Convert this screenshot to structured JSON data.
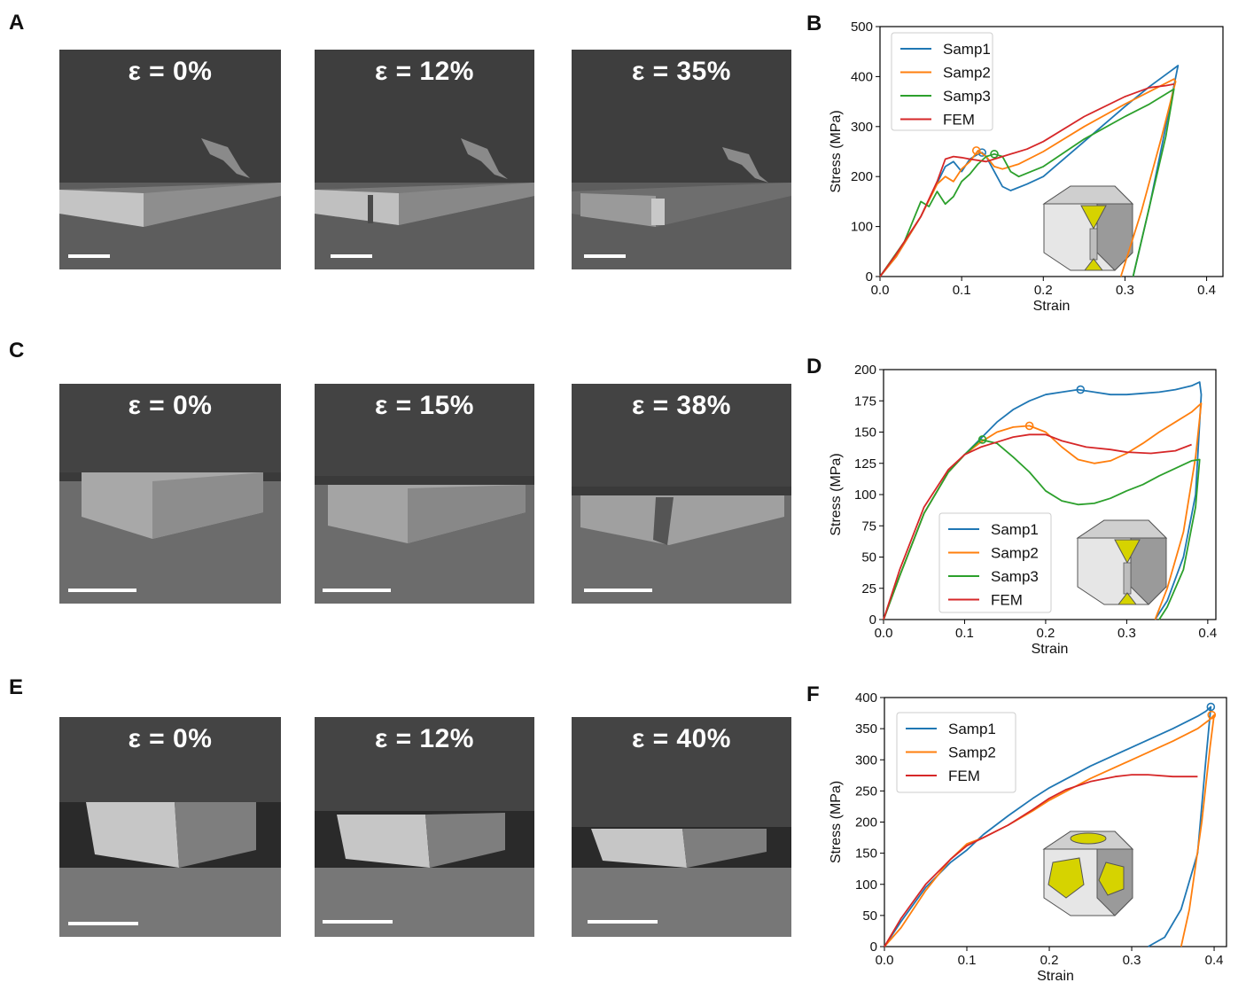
{
  "panels": {
    "A": {
      "letter": "A",
      "labels": [
        "ε = 0%",
        "ε = 12%",
        "ε = 35%"
      ]
    },
    "C": {
      "letter": "C",
      "labels": [
        "ε = 0%",
        "ε = 15%",
        "ε = 38%"
      ]
    },
    "E": {
      "letter": "E",
      "labels": [
        "ε = 0%",
        "ε = 12%",
        "ε = 40%"
      ]
    }
  },
  "colors": {
    "Samp1": "#1f77b4",
    "Samp2": "#ff7f0e",
    "Samp3": "#2ca02c",
    "FEM": "#d62728",
    "inset_yellow": "#d6d300",
    "inset_gray": "#9a9a9a"
  },
  "chart_data": [
    {
      "letter": "B",
      "type": "line",
      "xlabel": "Strain",
      "ylabel": "Stress (MPa)",
      "xlim": [
        0,
        0.42
      ],
      "ylim": [
        0,
        500
      ],
      "xticks": [
        0.0,
        0.1,
        0.2,
        0.3,
        0.4
      ],
      "xtick_labels": [
        "0.0",
        "0.1",
        "0.2",
        "0.3",
        "0.4"
      ],
      "yticks": [
        0,
        100,
        200,
        300,
        400,
        500
      ],
      "ytick_labels": [
        "0",
        "100",
        "200",
        "300",
        "400",
        "500"
      ],
      "legend": [
        "Samp1",
        "Samp2",
        "Samp3",
        "FEM"
      ],
      "inset": "truncated-octahedron-thick",
      "series": [
        {
          "name": "Samp1",
          "x": [
            0,
            0.02,
            0.05,
            0.08,
            0.09,
            0.1,
            0.11,
            0.12,
            0.125,
            0.13,
            0.14,
            0.15,
            0.16,
            0.18,
            0.2,
            0.25,
            0.3,
            0.33,
            0.355,
            0.365,
            0.35,
            0.33,
            0.31
          ],
          "y": [
            0,
            40,
            120,
            220,
            230,
            210,
            235,
            245,
            248,
            240,
            210,
            180,
            172,
            185,
            200,
            270,
            340,
            380,
            410,
            422,
            300,
            140,
            0
          ],
          "marker": [
            0.125,
            248
          ]
        },
        {
          "name": "Samp2",
          "x": [
            0,
            0.02,
            0.05,
            0.07,
            0.08,
            0.09,
            0.1,
            0.11,
            0.12,
            0.13,
            0.14,
            0.15,
            0.17,
            0.2,
            0.25,
            0.3,
            0.33,
            0.36,
            0.362,
            0.345,
            0.32,
            0.295
          ],
          "y": [
            0,
            40,
            120,
            185,
            200,
            190,
            215,
            230,
            252,
            240,
            220,
            215,
            225,
            250,
            300,
            345,
            370,
            395,
            390,
            280,
            130,
            0
          ],
          "marker": [
            0.118,
            252
          ]
        },
        {
          "name": "Samp3",
          "x": [
            0,
            0.03,
            0.05,
            0.06,
            0.07,
            0.08,
            0.09,
            0.1,
            0.11,
            0.12,
            0.13,
            0.14,
            0.15,
            0.16,
            0.17,
            0.2,
            0.25,
            0.3,
            0.33,
            0.36,
            0.35,
            0.33,
            0.31
          ],
          "y": [
            0,
            70,
            150,
            140,
            170,
            145,
            160,
            190,
            205,
            225,
            240,
            245,
            240,
            210,
            200,
            220,
            275,
            320,
            345,
            375,
            280,
            140,
            0
          ],
          "marker": [
            0.14,
            245
          ]
        },
        {
          "name": "FEM",
          "x": [
            0,
            0.02,
            0.05,
            0.07,
            0.08,
            0.09,
            0.1,
            0.11,
            0.13,
            0.15,
            0.18,
            0.2,
            0.25,
            0.3,
            0.33,
            0.35,
            0.36
          ],
          "y": [
            0,
            45,
            120,
            190,
            235,
            240,
            238,
            235,
            230,
            240,
            255,
            270,
            320,
            360,
            378,
            382,
            385
          ]
        }
      ]
    },
    {
      "letter": "D",
      "type": "line",
      "xlabel": "Strain",
      "ylabel": "Stress (MPa)",
      "xlim": [
        0,
        0.41
      ],
      "ylim": [
        0,
        200
      ],
      "xticks": [
        0.0,
        0.1,
        0.2,
        0.3,
        0.4
      ],
      "xtick_labels": [
        "0.0",
        "0.1",
        "0.2",
        "0.3",
        "0.4"
      ],
      "yticks": [
        0,
        25,
        50,
        75,
        100,
        125,
        150,
        175,
        200
      ],
      "ytick_labels": [
        "0",
        "25",
        "50",
        "75",
        "100",
        "125",
        "150",
        "175",
        "200"
      ],
      "legend": [
        "Samp1",
        "Samp2",
        "Samp3",
        "FEM"
      ],
      "inset": "truncated-octahedron-medium",
      "series": [
        {
          "name": "Samp1",
          "x": [
            0,
            0.02,
            0.05,
            0.08,
            0.1,
            0.12,
            0.14,
            0.16,
            0.18,
            0.2,
            0.22,
            0.24,
            0.26,
            0.28,
            0.3,
            0.32,
            0.34,
            0.36,
            0.38,
            0.39,
            0.392,
            0.385,
            0.37,
            0.35,
            0.335
          ],
          "y": [
            0,
            35,
            85,
            118,
            132,
            145,
            158,
            168,
            175,
            180,
            182,
            184,
            182,
            180,
            180,
            181,
            182,
            184,
            187,
            190,
            180,
            100,
            50,
            15,
            0
          ],
          "marker": [
            0.243,
            184
          ]
        },
        {
          "name": "Samp2",
          "x": [
            0,
            0.02,
            0.05,
            0.08,
            0.1,
            0.12,
            0.14,
            0.16,
            0.18,
            0.2,
            0.22,
            0.24,
            0.26,
            0.28,
            0.3,
            0.32,
            0.34,
            0.36,
            0.38,
            0.392,
            0.385,
            0.37,
            0.35,
            0.335
          ],
          "y": [
            0,
            35,
            85,
            118,
            132,
            142,
            150,
            154,
            155,
            150,
            138,
            128,
            125,
            127,
            133,
            141,
            150,
            158,
            166,
            173,
            130,
            70,
            25,
            0
          ],
          "marker": [
            0.18,
            155
          ]
        },
        {
          "name": "Samp3",
          "x": [
            0,
            0.02,
            0.05,
            0.08,
            0.1,
            0.12,
            0.14,
            0.16,
            0.18,
            0.2,
            0.22,
            0.24,
            0.26,
            0.28,
            0.3,
            0.32,
            0.34,
            0.36,
            0.38,
            0.39,
            0.385,
            0.37,
            0.35,
            0.34
          ],
          "y": [
            0,
            35,
            85,
            118,
            132,
            144,
            141,
            130,
            118,
            103,
            95,
            92,
            93,
            97,
            103,
            108,
            115,
            121,
            127,
            128,
            90,
            40,
            10,
            0
          ],
          "marker": [
            0.122,
            144
          ]
        },
        {
          "name": "FEM",
          "x": [
            0,
            0.02,
            0.05,
            0.08,
            0.1,
            0.12,
            0.14,
            0.16,
            0.18,
            0.2,
            0.22,
            0.25,
            0.28,
            0.3,
            0.33,
            0.36,
            0.38
          ],
          "y": [
            0,
            40,
            90,
            120,
            132,
            138,
            142,
            146,
            148,
            148,
            143,
            138,
            136,
            134,
            133,
            135,
            140
          ]
        }
      ]
    },
    {
      "letter": "F",
      "type": "line",
      "xlabel": "Strain",
      "ylabel": "Stress (MPa)",
      "xlim": [
        0,
        0.415
      ],
      "ylim": [
        0,
        400
      ],
      "xticks": [
        0.0,
        0.1,
        0.2,
        0.3,
        0.4
      ],
      "xtick_labels": [
        "0.0",
        "0.1",
        "0.2",
        "0.3",
        "0.4"
      ],
      "yticks": [
        0,
        50,
        100,
        150,
        200,
        250,
        300,
        350,
        400
      ],
      "ytick_labels": [
        "0",
        "50",
        "100",
        "150",
        "200",
        "250",
        "300",
        "350",
        "400"
      ],
      "legend": [
        "Samp1",
        "Samp2",
        "FEM"
      ],
      "inset": "truncated-octahedron-open",
      "series": [
        {
          "name": "Samp1",
          "x": [
            0,
            0.02,
            0.05,
            0.08,
            0.1,
            0.12,
            0.15,
            0.18,
            0.2,
            0.25,
            0.3,
            0.35,
            0.38,
            0.39,
            0.396,
            0.39,
            0.38,
            0.36,
            0.34,
            0.32
          ],
          "y": [
            0,
            40,
            95,
            135,
            155,
            180,
            210,
            238,
            255,
            290,
            320,
            350,
            370,
            378,
            385,
            300,
            150,
            60,
            15,
            0
          ],
          "marker": [
            0.396,
            385
          ]
        },
        {
          "name": "Samp2",
          "x": [
            0,
            0.02,
            0.05,
            0.08,
            0.1,
            0.12,
            0.15,
            0.18,
            0.2,
            0.25,
            0.3,
            0.35,
            0.38,
            0.395,
            0.4,
            0.395,
            0.385,
            0.37,
            0.36
          ],
          "y": [
            0,
            30,
            90,
            140,
            165,
            175,
            195,
            218,
            235,
            270,
            300,
            330,
            350,
            365,
            372,
            320,
            200,
            60,
            0
          ],
          "marker": [
            0.397,
            372
          ]
        },
        {
          "name": "FEM",
          "x": [
            0,
            0.02,
            0.05,
            0.08,
            0.1,
            0.12,
            0.15,
            0.18,
            0.2,
            0.22,
            0.25,
            0.28,
            0.3,
            0.32,
            0.35,
            0.38
          ],
          "y": [
            0,
            45,
            100,
            140,
            162,
            175,
            195,
            220,
            238,
            252,
            265,
            273,
            276,
            276,
            273,
            273
          ]
        }
      ]
    }
  ]
}
